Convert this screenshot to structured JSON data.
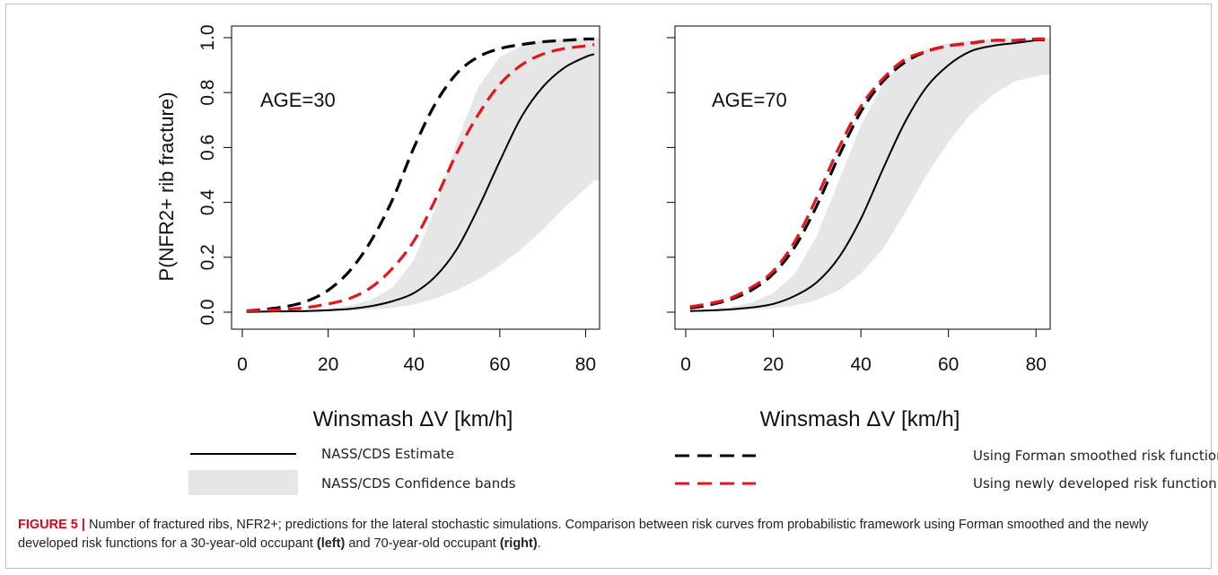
{
  "chart_data": [
    {
      "type": "line",
      "panel": "left",
      "annotation": "AGE=30",
      "xlabel": "Winsmash ΔV [km/h]",
      "ylabel": "P(NFR2+ rib fracture)",
      "xlim": [
        0,
        82
      ],
      "ylim": [
        0,
        1
      ],
      "xticks": [
        0,
        20,
        40,
        60,
        80
      ],
      "yticks": [
        0.0,
        0.2,
        0.4,
        0.6,
        0.8,
        1.0
      ],
      "ytick_labels": [
        "0.0",
        "0.2",
        "0.4",
        "0.6",
        "0.8",
        "1.0"
      ],
      "x": [
        1,
        5,
        10,
        15,
        20,
        25,
        30,
        35,
        40,
        45,
        50,
        55,
        60,
        65,
        70,
        75,
        80,
        82
      ],
      "series": [
        {
          "name": "NASS/CDS Estimate",
          "color": "#000000",
          "style": "solid",
          "values": [
            0.001,
            0.002,
            0.003,
            0.004,
            0.007,
            0.012,
            0.022,
            0.04,
            0.07,
            0.13,
            0.23,
            0.38,
            0.55,
            0.71,
            0.82,
            0.89,
            0.93,
            0.94
          ]
        },
        {
          "name": "Using Forman smoothed risk function",
          "color": "#000000",
          "style": "dashed",
          "values": [
            0.005,
            0.01,
            0.02,
            0.04,
            0.08,
            0.15,
            0.26,
            0.41,
            0.6,
            0.76,
            0.87,
            0.93,
            0.96,
            0.975,
            0.985,
            0.99,
            0.995,
            0.995
          ]
        },
        {
          "name": "Using newly developed risk function",
          "color": "#e8141b",
          "style": "dashed",
          "values": [
            0.005,
            0.007,
            0.01,
            0.017,
            0.03,
            0.05,
            0.09,
            0.16,
            0.26,
            0.41,
            0.58,
            0.72,
            0.83,
            0.9,
            0.94,
            0.96,
            0.97,
            0.975
          ]
        },
        {
          "name": "NASS/CDS Confidence bands",
          "type": "band",
          "color": "#e6e6e6",
          "upper": [
            0.003,
            0.004,
            0.006,
            0.009,
            0.014,
            0.024,
            0.045,
            0.09,
            0.19,
            0.38,
            0.62,
            0.82,
            0.93,
            0.97,
            0.99,
            0.995,
            0.998,
            0.999
          ],
          "lower": [
            0.001,
            0.001,
            0.001,
            0.002,
            0.003,
            0.005,
            0.009,
            0.016,
            0.028,
            0.05,
            0.08,
            0.12,
            0.17,
            0.23,
            0.3,
            0.38,
            0.45,
            0.48
          ]
        }
      ]
    },
    {
      "type": "line",
      "panel": "right",
      "annotation": "AGE=70",
      "xlabel": "Winsmash ΔV [km/h]",
      "ylabel": "",
      "xlim": [
        0,
        82
      ],
      "ylim": [
        0,
        1
      ],
      "xticks": [
        0,
        20,
        40,
        60,
        80
      ],
      "yticks": [
        0.0,
        0.2,
        0.4,
        0.6,
        0.8,
        1.0
      ],
      "x": [
        1,
        5,
        10,
        15,
        20,
        25,
        30,
        35,
        40,
        45,
        50,
        55,
        60,
        65,
        70,
        75,
        80,
        82
      ],
      "series": [
        {
          "name": "NASS/CDS Estimate",
          "color": "#000000",
          "style": "solid",
          "values": [
            0.004,
            0.006,
            0.01,
            0.017,
            0.03,
            0.06,
            0.11,
            0.2,
            0.34,
            0.52,
            0.69,
            0.82,
            0.9,
            0.95,
            0.97,
            0.98,
            0.99,
            0.99
          ]
        },
        {
          "name": "Using Forman smoothed risk function",
          "color": "#000000",
          "style": "dashed",
          "values": [
            0.015,
            0.025,
            0.045,
            0.08,
            0.14,
            0.24,
            0.39,
            0.57,
            0.73,
            0.84,
            0.91,
            0.95,
            0.97,
            0.98,
            0.99,
            0.99,
            0.995,
            0.995
          ]
        },
        {
          "name": "Using newly developed risk function",
          "color": "#e8141b",
          "style": "dashed",
          "values": [
            0.02,
            0.03,
            0.05,
            0.09,
            0.15,
            0.26,
            0.42,
            0.6,
            0.75,
            0.85,
            0.92,
            0.95,
            0.97,
            0.98,
            0.99,
            0.99,
            0.995,
            0.995
          ]
        },
        {
          "name": "NASS/CDS Confidence bands",
          "type": "band",
          "color": "#e6e6e6",
          "upper": [
            0.006,
            0.01,
            0.018,
            0.035,
            0.07,
            0.14,
            0.28,
            0.48,
            0.68,
            0.83,
            0.92,
            0.96,
            0.98,
            0.99,
            0.995,
            0.998,
            0.999,
            0.999
          ],
          "lower": [
            0.002,
            0.003,
            0.005,
            0.008,
            0.014,
            0.025,
            0.045,
            0.08,
            0.14,
            0.23,
            0.36,
            0.5,
            0.62,
            0.72,
            0.79,
            0.84,
            0.86,
            0.865
          ]
        }
      ]
    }
  ],
  "legend": {
    "items": [
      {
        "label": "NASS/CDS Estimate",
        "kind": "solid-black"
      },
      {
        "label": "NASS/CDS Confidence bands",
        "kind": "gray-band"
      },
      {
        "label": "Using Forman smoothed risk function",
        "kind": "dashed-black"
      },
      {
        "label": "Using newly developed risk function",
        "kind": "dashed-red"
      }
    ]
  },
  "caption": {
    "label": "FIGURE 5 |",
    "text_1": "Number of fractured ribs, NFR2+; predictions for the lateral stochastic simulations. Comparison between risk curves from probabilistic framework using Forman smoothed and the newly developed risk functions for a 30-year-old occupant",
    "left": "(left)",
    "text_2": "and 70-year-old occupant",
    "right": "(right)",
    "end": "."
  },
  "colors": {
    "band": "#e6e6e6",
    "red": "#e8141b",
    "black": "#000000",
    "caption_label": "#e2001a"
  }
}
